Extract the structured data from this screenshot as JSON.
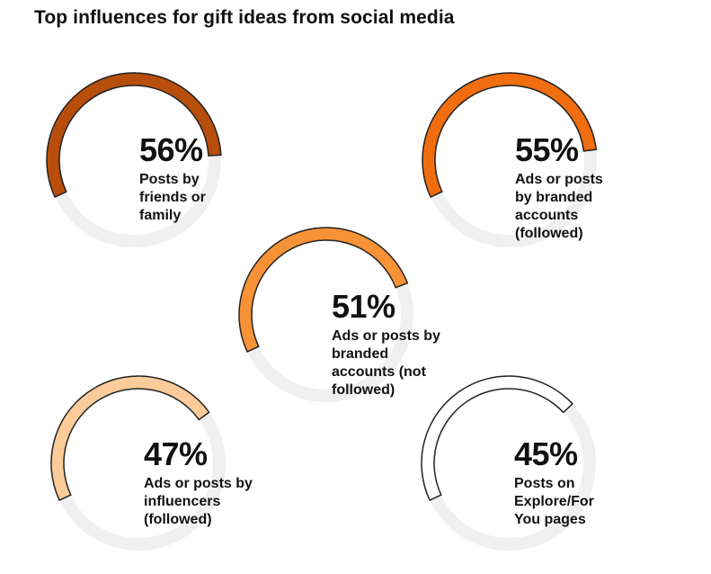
{
  "title": "Top influences for gift ideas from social media",
  "chart_data": {
    "type": "radial-progress",
    "title": "Top influences for gift ideas from social media",
    "items": [
      {
        "value": 56,
        "value_label": "56%",
        "label": "Posts by friends or family",
        "color": "#b84e0c"
      },
      {
        "value": 55,
        "value_label": "55%",
        "label": "Ads or posts by branded accounts (followed)",
        "color": "#f06d10"
      },
      {
        "value": 51,
        "value_label": "51%",
        "label": "Ads or posts by branded accounts (not followed)",
        "color": "#f89236"
      },
      {
        "value": 47,
        "value_label": "47%",
        "label": "Ads or posts by influencers (followed)",
        "color": "#fbcc9a"
      },
      {
        "value": 45,
        "value_label": "45%",
        "label": "Posts on Explore/For You pages",
        "color": "#ffffff"
      }
    ]
  }
}
